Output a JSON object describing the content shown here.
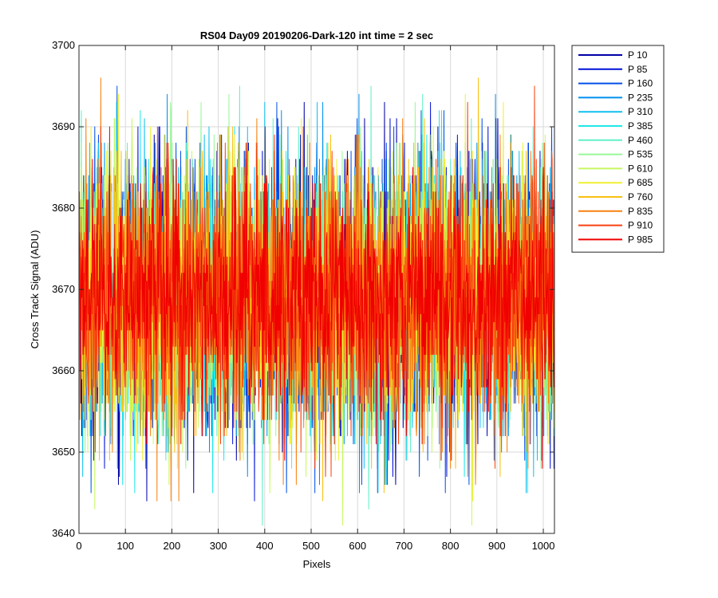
{
  "chart_data": {
    "type": "line",
    "title": "RS04 Day09 20190206-Dark-120 int time = 2 sec",
    "xlabel": "Pixels",
    "ylabel": "Cross Track Signal (ADU)",
    "xlim": [
      0,
      1024
    ],
    "ylim": [
      3640,
      3700
    ],
    "xticks": [
      0,
      100,
      200,
      300,
      400,
      500,
      600,
      700,
      800,
      900,
      1000
    ],
    "yticks": [
      3640,
      3650,
      3660,
      3670,
      3680,
      3690,
      3700
    ],
    "grid": true,
    "legend_position": "outside-top-right",
    "series": [
      {
        "name": "P 10",
        "color": "#0000a8",
        "mean": 3669,
        "sd": 8,
        "min": 3644,
        "max": 3696
      },
      {
        "name": "P 85",
        "color": "#0010d8",
        "mean": 3669,
        "sd": 8,
        "min": 3644,
        "max": 3696
      },
      {
        "name": "P 160",
        "color": "#0050e8",
        "mean": 3669,
        "sd": 8,
        "min": 3645,
        "max": 3695
      },
      {
        "name": "P 235",
        "color": "#0090f0",
        "mean": 3669,
        "sd": 8,
        "min": 3645,
        "max": 3694
      },
      {
        "name": "P 310",
        "color": "#10c0f0",
        "mean": 3669,
        "sd": 8,
        "min": 3645,
        "max": 3693
      },
      {
        "name": "P 385",
        "color": "#20e8e8",
        "mean": 3669,
        "sd": 8,
        "min": 3645,
        "max": 3692
      },
      {
        "name": "P 460",
        "color": "#60f0c8",
        "mean": 3669,
        "sd": 8,
        "min": 3641,
        "max": 3695
      },
      {
        "name": "P 535",
        "color": "#98f898",
        "mean": 3669,
        "sd": 8,
        "min": 3644,
        "max": 3697
      },
      {
        "name": "P 610",
        "color": "#c8f860",
        "mean": 3669,
        "sd": 8,
        "min": 3641,
        "max": 3695
      },
      {
        "name": "P 685",
        "color": "#f0f030",
        "mean": 3669,
        "sd": 8,
        "min": 3644,
        "max": 3694
      },
      {
        "name": "P 760",
        "color": "#f8c010",
        "mean": 3669,
        "sd": 8,
        "min": 3641,
        "max": 3700
      },
      {
        "name": "P 835",
        "color": "#f88010",
        "mean": 3669,
        "sd": 8,
        "min": 3644,
        "max": 3700
      },
      {
        "name": "P 910",
        "color": "#f84010",
        "mean": 3669,
        "sd": 8,
        "min": 3644,
        "max": 3695
      },
      {
        "name": "P 985",
        "color": "#f00000",
        "mean": 3669,
        "sd": 7,
        "min": 3645,
        "max": 3695
      }
    ]
  }
}
